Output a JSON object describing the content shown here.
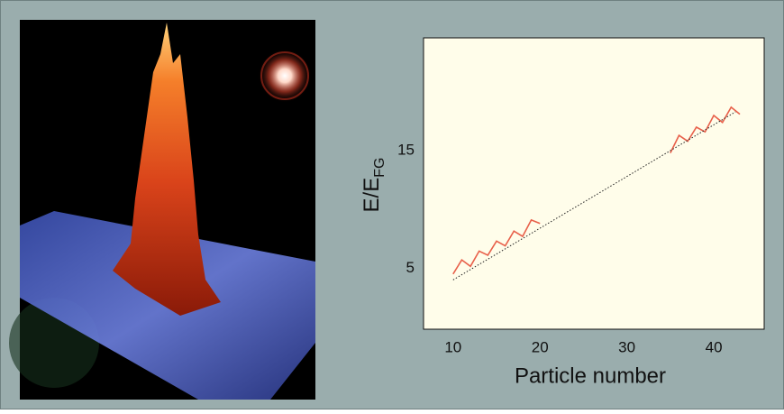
{
  "chart_data": {
    "type": "line",
    "xlabel": "Particle number",
    "ylabel": {
      "main": "E/E",
      "sub": "FG"
    },
    "xlim": [
      6.6,
      45.8
    ],
    "xticks": [
      10,
      20,
      30,
      40
    ],
    "ylim": [
      -0.2,
      24.6
    ],
    "yticks": [
      5,
      15
    ],
    "grid": false,
    "series": [
      {
        "color": "#e8604a",
        "style": "solid",
        "x": [
          10,
          11,
          12,
          13,
          14,
          15,
          16,
          17,
          18,
          19,
          20
        ],
        "values": [
          4.5,
          5.7,
          5.15,
          6.45,
          6.1,
          7.3,
          6.9,
          8.15,
          7.7,
          9.1,
          8.8
        ]
      },
      {
        "color": "#e8604a",
        "style": "solid",
        "x": [
          35,
          36,
          37,
          38,
          39,
          40,
          41,
          42,
          43
        ],
        "values": [
          14.8,
          16.3,
          15.8,
          17.0,
          16.6,
          18.0,
          17.4,
          18.7,
          18.1
        ]
      },
      {
        "color": "#222222",
        "style": "dotted",
        "x": [
          10,
          42.5
        ],
        "values": [
          4.0,
          18.3
        ]
      }
    ]
  }
}
